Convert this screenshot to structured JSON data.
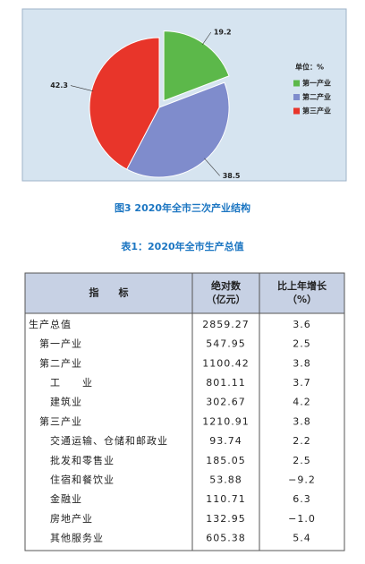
{
  "chart_data": {
    "type": "pie",
    "legend_title": "单位：%",
    "categories": [
      "第一产业",
      "第二产业",
      "第三产业"
    ],
    "values": [
      19.2,
      38.5,
      42.3
    ],
    "colors": [
      "#5cb84a",
      "#7f8ccc",
      "#e8352a"
    ],
    "legend": "right"
  },
  "caption": "图3  2020年全市三次产业结构",
  "table": {
    "title": "表1：2020年全市生产总值",
    "header": [
      [
        "指　　标"
      ],
      [
        "绝对数",
        "（亿元）"
      ],
      [
        "比上年增长",
        "（%）"
      ]
    ],
    "rows": [
      [
        "生产总值",
        "2859.27",
        "3.6"
      ],
      [
        "第一产业",
        "547.95",
        "2.5"
      ],
      [
        "第二产业",
        "1100.42",
        "3.8"
      ],
      [
        "工　　业",
        "801.11",
        "3.7"
      ],
      [
        "建筑业",
        "302.67",
        "4.2"
      ],
      [
        "第三产业",
        "1210.91",
        "3.8"
      ],
      [
        "交通运输、仓储和邮政业",
        "93.74",
        "2.2"
      ],
      [
        "批发和零售业",
        "185.05",
        "2.5"
      ],
      [
        "住宿和餐饮业",
        "53.88",
        "−9.2"
      ],
      [
        "金融业",
        "110.71",
        "6.3"
      ],
      [
        "房地产业",
        "132.95",
        "−1.0"
      ],
      [
        "其他服务业",
        "605.38",
        "5.4"
      ]
    ]
  }
}
